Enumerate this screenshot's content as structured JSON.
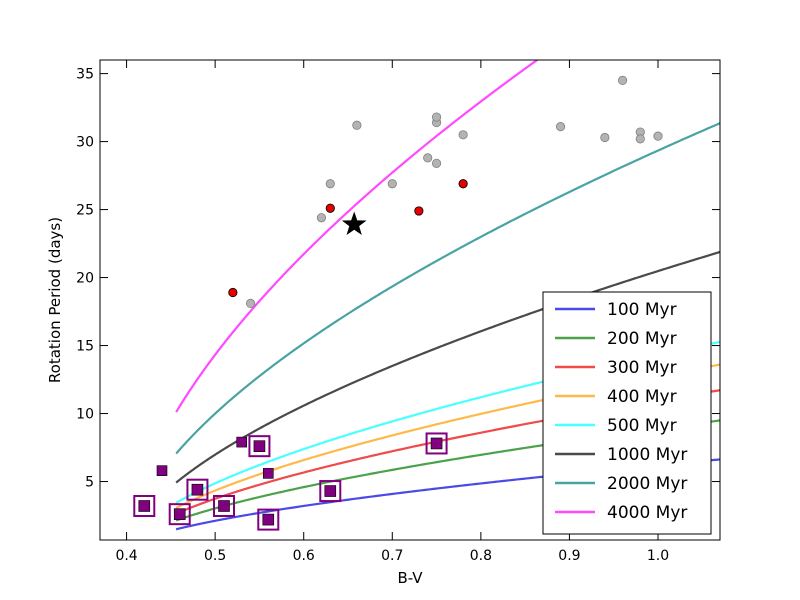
{
  "chart_data": {
    "type": "scatter",
    "xlabel": "B-V",
    "ylabel": "Rotation Period (days)",
    "xlim": [
      0.37,
      1.07
    ],
    "ylim": [
      0.7,
      36
    ],
    "xticks": [
      0.4,
      0.5,
      0.6,
      0.7,
      0.8,
      0.9,
      1.0
    ],
    "xtick_labels": [
      "0.4",
      "0.5",
      "0.6",
      "0.7",
      "0.8",
      "0.9",
      "1.0"
    ],
    "yticks": [
      5,
      10,
      15,
      20,
      25,
      30,
      35
    ],
    "ytick_labels": [
      "5",
      "10",
      "15",
      "20",
      "25",
      "30",
      "35"
    ],
    "grid": false,
    "legend_position": "lower-right",
    "gyrochrones": {
      "bv_start": 0.456,
      "model_coefficients": {
        "a": 0.7725,
        "b": 0.601,
        "n": 0.5189
      },
      "series": [
        {
          "name": "100 Myr",
          "age_myr": 100,
          "color": "#4a4ae6"
        },
        {
          "name": "200 Myr",
          "age_myr": 200,
          "color": "#4ca24c"
        },
        {
          "name": "300 Myr",
          "age_myr": 300,
          "color": "#f04a4a"
        },
        {
          "name": "400 Myr",
          "age_myr": 400,
          "color": "#ffb84a"
        },
        {
          "name": "500 Myr",
          "age_myr": 500,
          "color": "#4affff"
        },
        {
          "name": "1000 Myr",
          "age_myr": 1000,
          "color": "#4a4a4a"
        },
        {
          "name": "2000 Myr",
          "age_myr": 2000,
          "color": "#4aa3a3"
        },
        {
          "name": "4000 Myr",
          "age_myr": 4000,
          "color": "#ff4aff"
        }
      ]
    },
    "gray_points": [
      [
        0.62,
        24.4
      ],
      [
        0.63,
        26.9
      ],
      [
        0.66,
        31.2
      ],
      [
        0.54,
        18.1
      ],
      [
        0.7,
        26.9
      ],
      [
        0.74,
        28.8
      ],
      [
        0.75,
        28.4
      ],
      [
        0.75,
        31.4
      ],
      [
        0.75,
        31.8
      ],
      [
        0.78,
        30.5
      ],
      [
        0.89,
        31.1
      ],
      [
        0.94,
        30.3
      ],
      [
        0.96,
        34.5
      ],
      [
        0.98,
        30.7
      ],
      [
        0.98,
        30.2
      ],
      [
        1.0,
        30.4
      ]
    ],
    "red_points": [
      [
        0.52,
        18.9
      ],
      [
        0.63,
        25.1
      ],
      [
        0.73,
        24.9
      ],
      [
        0.78,
        26.9
      ]
    ],
    "star_point": [
      0.657,
      23.9
    ],
    "purple_squares": [
      [
        0.44,
        5.8
      ],
      [
        0.53,
        7.9
      ],
      [
        0.56,
        5.6
      ]
    ],
    "purple_boxed_squares": [
      [
        0.42,
        3.2
      ],
      [
        0.46,
        2.6
      ],
      [
        0.48,
        4.4
      ],
      [
        0.51,
        3.2
      ],
      [
        0.55,
        7.6
      ],
      [
        0.56,
        2.2
      ],
      [
        0.63,
        4.3
      ],
      [
        0.75,
        7.8
      ]
    ],
    "colors": {
      "gray_point": "#b3b3b3",
      "red_point": "#e60000",
      "purple": "#800080",
      "star": "#000000"
    }
  }
}
